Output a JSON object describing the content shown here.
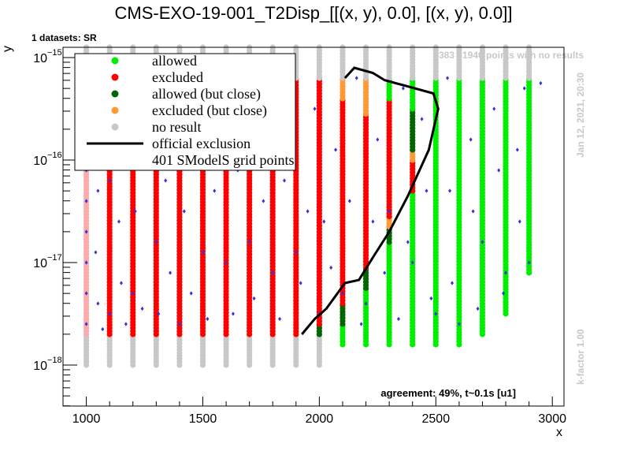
{
  "chart_data": {
    "type": "scatter",
    "title": "CMS-EXO-19-001_T2Disp_[[(x, y), 0.0], [(x, y), 0.0]]",
    "xlabel": "x",
    "ylabel": "y",
    "xlim": [
      900,
      3050
    ],
    "ylim_log10": [
      -18.4,
      -14.9
    ],
    "x_ticks": [
      1000,
      1500,
      2000,
      2500,
      3000
    ],
    "y_ticks": [
      {
        "exp": -15,
        "label": "10",
        "sup": "−15"
      },
      {
        "exp": -16,
        "label": "10",
        "sup": "−16"
      },
      {
        "exp": -17,
        "label": "10",
        "sup": "−17"
      },
      {
        "exp": -18,
        "label": "10",
        "sup": "−18"
      }
    ],
    "datasets_label": "1 datasets: SR",
    "no_results_note": "383 / 1940 points with no results",
    "timestamp": "Jan 12, 2021, 20:30",
    "kfactor": "k-factor 1.00",
    "agreement": "agreement: 49%, t~0.1s [u1]",
    "legend_placement": "top-left",
    "legend": [
      {
        "label": "allowed",
        "color": "#00ee00",
        "marker": "dot"
      },
      {
        "label": "excluded",
        "color": "#ff0000",
        "marker": "dot"
      },
      {
        "label": "allowed (but close)",
        "color": "#006600",
        "marker": "dot"
      },
      {
        "label": "excluded (but close)",
        "color": "#ff9933",
        "marker": "dot"
      },
      {
        "label": "no result",
        "color": "#c8c8c8",
        "marker": "dot"
      },
      {
        "label": "official exclusion",
        "color": "#000000",
        "marker": "line"
      },
      {
        "label": "401 SModelS grid points",
        "color": "",
        "marker": "none"
      }
    ],
    "colors": {
      "allowed": "#00ee00",
      "excluded": "#ff0000",
      "allowed_close": "#006600",
      "excluded_close": "#ff9933",
      "no_result": "#c8c8c8",
      "excluded_light": "#ffaaaa",
      "grid_point": "#3333dd",
      "exclusion_line": "#000000"
    },
    "columns": [
      {
        "x": 1000,
        "segments": [
          [
            -18.0,
            -17.7,
            "no_result"
          ],
          [
            -17.7,
            -15.2,
            "excluded_light"
          ],
          [
            -15.2,
            -14.9,
            "no_result"
          ]
        ]
      },
      {
        "x": 1100,
        "segments": [
          [
            -18.0,
            -17.7,
            "no_result"
          ],
          [
            -17.7,
            -15.2,
            "excluded"
          ],
          [
            -15.2,
            -14.9,
            "no_result"
          ]
        ]
      },
      {
        "x": 1200,
        "segments": [
          [
            -18.0,
            -17.7,
            "no_result"
          ],
          [
            -17.7,
            -15.2,
            "excluded"
          ],
          [
            -15.2,
            -14.9,
            "no_result"
          ]
        ]
      },
      {
        "x": 1300,
        "segments": [
          [
            -18.0,
            -17.7,
            "no_result"
          ],
          [
            -17.7,
            -15.2,
            "excluded"
          ],
          [
            -15.2,
            -14.9,
            "no_result"
          ]
        ]
      },
      {
        "x": 1400,
        "segments": [
          [
            -18.0,
            -17.7,
            "no_result"
          ],
          [
            -17.7,
            -15.2,
            "excluded"
          ],
          [
            -15.2,
            -14.9,
            "no_result"
          ]
        ]
      },
      {
        "x": 1500,
        "segments": [
          [
            -18.0,
            -17.7,
            "no_result"
          ],
          [
            -17.7,
            -15.2,
            "excluded"
          ],
          [
            -15.2,
            -14.9,
            "no_result"
          ]
        ]
      },
      {
        "x": 1600,
        "segments": [
          [
            -18.0,
            -17.7,
            "no_result"
          ],
          [
            -17.7,
            -15.2,
            "excluded"
          ],
          [
            -15.2,
            -14.9,
            "no_result"
          ]
        ]
      },
      {
        "x": 1700,
        "segments": [
          [
            -18.0,
            -17.7,
            "no_result"
          ],
          [
            -17.7,
            -15.2,
            "excluded"
          ],
          [
            -15.2,
            -14.9,
            "no_result"
          ]
        ]
      },
      {
        "x": 1800,
        "segments": [
          [
            -18.0,
            -17.7,
            "no_result"
          ],
          [
            -17.7,
            -15.2,
            "excluded"
          ],
          [
            -15.2,
            -14.9,
            "no_result"
          ]
        ]
      },
      {
        "x": 1900,
        "segments": [
          [
            -18.0,
            -17.7,
            "no_result"
          ],
          [
            -17.7,
            -15.2,
            "excluded"
          ],
          [
            -15.2,
            -14.9,
            "no_result"
          ]
        ]
      },
      {
        "x": 2000,
        "segments": [
          [
            -18.0,
            -17.7,
            "no_result"
          ],
          [
            -17.7,
            -17.6,
            "allowed_close"
          ],
          [
            -17.6,
            -15.2,
            "excluded"
          ],
          [
            -15.2,
            -14.9,
            "no_result"
          ]
        ]
      },
      {
        "x": 2100,
        "segments": [
          [
            -17.8,
            -17.6,
            "allowed"
          ],
          [
            -17.6,
            -17.4,
            "allowed_close"
          ],
          [
            -17.4,
            -15.4,
            "excluded"
          ],
          [
            -15.4,
            -15.2,
            "excluded_close"
          ],
          [
            -15.2,
            -14.9,
            "no_result"
          ]
        ]
      },
      {
        "x": 2200,
        "segments": [
          [
            -17.8,
            -17.25,
            "allowed"
          ],
          [
            -17.25,
            -17.05,
            "allowed_close"
          ],
          [
            -17.05,
            -15.55,
            "excluded"
          ],
          [
            -15.55,
            -15.2,
            "excluded_close"
          ],
          [
            -15.2,
            -14.9,
            "no_result"
          ]
        ]
      },
      {
        "x": 2300,
        "segments": [
          [
            -17.8,
            -16.8,
            "allowed"
          ],
          [
            -16.8,
            -16.65,
            "allowed_close"
          ],
          [
            -16.65,
            -16.55,
            "excluded_close"
          ],
          [
            -16.55,
            -15.4,
            "excluded"
          ],
          [
            -15.4,
            -15.2,
            "allowed"
          ],
          [
            -15.2,
            -14.9,
            "no_result"
          ]
        ]
      },
      {
        "x": 2400,
        "segments": [
          [
            -17.8,
            -16.3,
            "allowed"
          ],
          [
            -16.3,
            -16.0,
            "excluded"
          ],
          [
            -16.0,
            -15.9,
            "excluded_close"
          ],
          [
            -15.9,
            -15.5,
            "allowed_close"
          ],
          [
            -15.5,
            -15.2,
            "allowed"
          ],
          [
            -15.2,
            -14.9,
            "no_result"
          ]
        ]
      },
      {
        "x": 2500,
        "segments": [
          [
            -17.8,
            -15.2,
            "allowed"
          ],
          [
            -15.2,
            -14.9,
            "no_result"
          ]
        ]
      },
      {
        "x": 2600,
        "segments": [
          [
            -17.8,
            -15.2,
            "allowed"
          ],
          [
            -15.2,
            -14.9,
            "no_result"
          ]
        ]
      },
      {
        "x": 2700,
        "segments": [
          [
            -17.7,
            -15.2,
            "allowed"
          ],
          [
            -15.2,
            -14.9,
            "no_result"
          ]
        ]
      },
      {
        "x": 2800,
        "segments": [
          [
            -17.5,
            -15.2,
            "allowed"
          ],
          [
            -15.2,
            -14.9,
            "no_result"
          ]
        ]
      },
      {
        "x": 2900,
        "segments": [
          [
            -17.1,
            -15.2,
            "allowed"
          ],
          [
            -15.2,
            -14.9,
            "no_result"
          ]
        ]
      }
    ],
    "official_exclusion": [
      [
        1925,
        -17.7
      ],
      [
        1980,
        -17.55
      ],
      [
        2030,
        -17.45
      ],
      [
        2110,
        -17.2
      ],
      [
        2170,
        -17.17
      ],
      [
        2230,
        -16.95
      ],
      [
        2300,
        -16.7
      ],
      [
        2380,
        -16.35
      ],
      [
        2470,
        -15.9
      ],
      [
        2510,
        -15.5
      ],
      [
        2490,
        -15.35
      ],
      [
        2280,
        -15.22
      ],
      [
        2230,
        -15.15
      ],
      [
        2150,
        -15.1
      ],
      [
        2110,
        -15.2
      ]
    ],
    "grid_points": [
      [
        1000,
        -17.6
      ],
      [
        1000,
        -17.3
      ],
      [
        1000,
        -17.0
      ],
      [
        1000,
        -16.7
      ],
      [
        1000,
        -16.4
      ],
      [
        1000,
        -16.1
      ],
      [
        1000,
        -15.8
      ],
      [
        1000,
        -15.5
      ],
      [
        1040,
        -16.9
      ],
      [
        1050,
        -17.4
      ],
      [
        1050,
        -16.3
      ],
      [
        1060,
        -15.7
      ],
      [
        1070,
        -17.65
      ],
      [
        1100,
        -17.5
      ],
      [
        1100,
        -16.2
      ],
      [
        1140,
        -16.6
      ],
      [
        1150,
        -17.2
      ],
      [
        1160,
        -15.9
      ],
      [
        1170,
        -17.6
      ],
      [
        1200,
        -17.3
      ],
      [
        1210,
        -16.5
      ],
      [
        1240,
        -17.45
      ],
      [
        1250,
        -16.0
      ],
      [
        1260,
        -15.4
      ],
      [
        1300,
        -16.8
      ],
      [
        1310,
        -17.5
      ],
      [
        1340,
        -16.2
      ],
      [
        1360,
        -17.1
      ],
      [
        1380,
        -15.6
      ],
      [
        1400,
        -17.6
      ],
      [
        1420,
        -16.5
      ],
      [
        1450,
        -17.3
      ],
      [
        1480,
        -15.9
      ],
      [
        1500,
        -16.9
      ],
      [
        1520,
        -17.55
      ],
      [
        1550,
        -16.3
      ],
      [
        1580,
        -15.5
      ],
      [
        1600,
        -17.0
      ],
      [
        1630,
        -17.5
      ],
      [
        1650,
        -16.1
      ],
      [
        1680,
        -15.7
      ],
      [
        1700,
        -16.8
      ],
      [
        1720,
        -17.35
      ],
      [
        1760,
        -16.4
      ],
      [
        1790,
        -15.6
      ],
      [
        1800,
        -17.1
      ],
      [
        1830,
        -17.55
      ],
      [
        1850,
        -16.2
      ],
      [
        1880,
        -15.8
      ],
      [
        1900,
        -16.9
      ],
      [
        1920,
        -17.2
      ],
      [
        1950,
        -16.5
      ],
      [
        1980,
        -15.5
      ],
      [
        2000,
        -17.5
      ],
      [
        2020,
        -16.6
      ],
      [
        2050,
        -17.05
      ],
      [
        2070,
        -15.9
      ],
      [
        2100,
        -17.3
      ],
      [
        2130,
        -16.4
      ],
      [
        2160,
        -15.2
      ],
      [
        2180,
        -17.6
      ],
      [
        2200,
        -17.4
      ],
      [
        2230,
        -16.6
      ],
      [
        2250,
        -15.8
      ],
      [
        2280,
        -17.1
      ],
      [
        2300,
        -16.5
      ],
      [
        2340,
        -17.55
      ],
      [
        2360,
        -15.3
      ],
      [
        2380,
        -16.8
      ],
      [
        2400,
        -17.0
      ],
      [
        2440,
        -15.6
      ],
      [
        2460,
        -16.3
      ],
      [
        2480,
        -17.35
      ],
      [
        2500,
        -17.5
      ],
      [
        2550,
        -15.2
      ],
      [
        2560,
        -16.3
      ],
      [
        2570,
        -17.2
      ],
      [
        2600,
        -17.6
      ],
      [
        2650,
        -15.8
      ],
      [
        2660,
        -16.5
      ],
      [
        2680,
        -17.45
      ],
      [
        2700,
        -16.8
      ],
      [
        2750,
        -15.5
      ],
      [
        2770,
        -16.1
      ],
      [
        2790,
        -17.3
      ],
      [
        2800,
        -17.1
      ],
      [
        2850,
        -15.9
      ],
      [
        2860,
        -16.6
      ],
      [
        2880,
        -15.3
      ],
      [
        2900,
        -17.0
      ],
      [
        2950,
        -15.25
      ]
    ]
  }
}
